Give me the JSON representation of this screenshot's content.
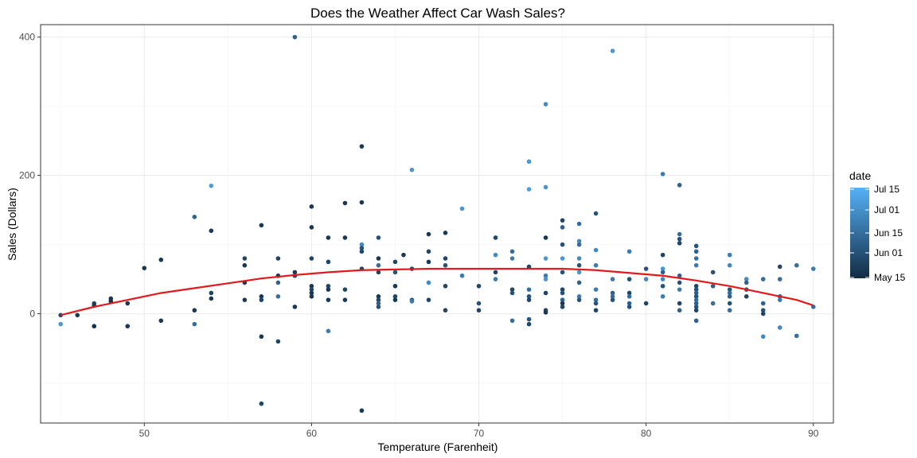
{
  "chart_data": {
    "type": "scatter",
    "title": "Does the Weather Affect Car Wash Sales?",
    "xlabel": "Temperature (Farenheit)",
    "ylabel": "Sales (Dollars)",
    "xlim": [
      43.8,
      91.2
    ],
    "ylim": [
      -158,
      418
    ],
    "xticks": [
      50,
      60,
      70,
      80,
      90
    ],
    "yticks": [
      0,
      200,
      400
    ],
    "grid": true,
    "point_colors": {
      "low": "#132B43",
      "high": "#56B1F7"
    },
    "trend_line": {
      "color": "#e31a1c",
      "x": [
        45,
        47,
        49,
        51,
        53,
        55,
        57,
        59,
        61,
        63,
        65,
        67,
        69,
        71,
        73,
        75,
        77,
        79,
        81,
        83,
        85,
        87,
        89,
        90
      ],
      "y": [
        -2,
        10,
        20,
        30,
        37,
        44,
        51,
        56,
        60,
        63,
        64,
        65,
        65,
        65,
        65,
        65,
        63,
        59,
        55,
        48,
        40,
        30,
        20,
        12
      ]
    },
    "legend": {
      "title": "date",
      "position": "right",
      "labels": [
        "Jul 15",
        "Jul 01",
        "Jun 15",
        "Jun 01",
        "May 15"
      ]
    },
    "points": [
      {
        "x": 45,
        "y": -2,
        "d": 0.2
      },
      {
        "x": 45,
        "y": -15,
        "d": 0.8
      },
      {
        "x": 46,
        "y": -2,
        "d": 0.1
      },
      {
        "x": 47,
        "y": 15,
        "d": 0.2
      },
      {
        "x": 47,
        "y": 12,
        "d": 0.1
      },
      {
        "x": 47,
        "y": -18,
        "d": 0.05
      },
      {
        "x": 48,
        "y": 22,
        "d": 0.1
      },
      {
        "x": 48,
        "y": 18,
        "d": 0.05
      },
      {
        "x": 49,
        "y": 15,
        "d": 0.1
      },
      {
        "x": 49,
        "y": -18,
        "d": 0.1
      },
      {
        "x": 50,
        "y": 66,
        "d": 0.1
      },
      {
        "x": 51,
        "y": 78,
        "d": 0.1
      },
      {
        "x": 51,
        "y": -10,
        "d": 0.1
      },
      {
        "x": 53,
        "y": 140,
        "d": 0.4
      },
      {
        "x": 53,
        "y": 5,
        "d": 0.1
      },
      {
        "x": 53,
        "y": -15,
        "d": 0.5
      },
      {
        "x": 54,
        "y": 185,
        "d": 0.85
      },
      {
        "x": 54,
        "y": 120,
        "d": 0.1
      },
      {
        "x": 54,
        "y": 30,
        "d": 0.2
      },
      {
        "x": 54,
        "y": 22,
        "d": 0.1
      },
      {
        "x": 56,
        "y": 80,
        "d": 0.2
      },
      {
        "x": 56,
        "y": 70,
        "d": 0.1
      },
      {
        "x": 56,
        "y": 45,
        "d": 0.1
      },
      {
        "x": 56,
        "y": 20,
        "d": 0.1
      },
      {
        "x": 57,
        "y": 128,
        "d": 0.1
      },
      {
        "x": 57,
        "y": 25,
        "d": 0.1
      },
      {
        "x": 57,
        "y": 20,
        "d": 0.2
      },
      {
        "x": 57,
        "y": -33,
        "d": 0.1
      },
      {
        "x": 57,
        "y": -130,
        "d": 0.2
      },
      {
        "x": 58,
        "y": 80,
        "d": 0.2
      },
      {
        "x": 58,
        "y": 55,
        "d": 0.1
      },
      {
        "x": 58,
        "y": 45,
        "d": 0.4
      },
      {
        "x": 58,
        "y": 25,
        "d": 0.5
      },
      {
        "x": 58,
        "y": -40,
        "d": 0.2
      },
      {
        "x": 59,
        "y": 400,
        "d": 0.4
      },
      {
        "x": 59,
        "y": 60,
        "d": 0.1
      },
      {
        "x": 59,
        "y": 55,
        "d": 0.2
      },
      {
        "x": 59,
        "y": 10,
        "d": 0.1
      },
      {
        "x": 60,
        "y": 155,
        "d": 0.1
      },
      {
        "x": 60,
        "y": 125,
        "d": 0.1
      },
      {
        "x": 60,
        "y": 80,
        "d": 0.2
      },
      {
        "x": 60,
        "y": 40,
        "d": 0.1
      },
      {
        "x": 60,
        "y": 35,
        "d": 0.2
      },
      {
        "x": 60,
        "y": 30,
        "d": 0.1
      },
      {
        "x": 60,
        "y": 25,
        "d": 0.1
      },
      {
        "x": 61,
        "y": 110,
        "d": 0.1
      },
      {
        "x": 61,
        "y": 75,
        "d": 0.2
      },
      {
        "x": 61,
        "y": 40,
        "d": 0.2
      },
      {
        "x": 61,
        "y": 35,
        "d": 0.1
      },
      {
        "x": 61,
        "y": 20,
        "d": 0.1
      },
      {
        "x": 61,
        "y": -25,
        "d": 0.6
      },
      {
        "x": 62,
        "y": 160,
        "d": 0.1
      },
      {
        "x": 62,
        "y": 110,
        "d": 0.1
      },
      {
        "x": 62,
        "y": 35,
        "d": 0.2
      },
      {
        "x": 62,
        "y": 20,
        "d": 0.1
      },
      {
        "x": 63,
        "y": 242,
        "d": 0.1
      },
      {
        "x": 63,
        "y": 161,
        "d": 0.1
      },
      {
        "x": 63,
        "y": 100,
        "d": 0.7
      },
      {
        "x": 63,
        "y": 95,
        "d": 0.3
      },
      {
        "x": 63,
        "y": 90,
        "d": 0.2
      },
      {
        "x": 63,
        "y": 65,
        "d": 0.2
      },
      {
        "x": 63,
        "y": -140,
        "d": 0.1
      },
      {
        "x": 64,
        "y": 110,
        "d": 0.3
      },
      {
        "x": 64,
        "y": 80,
        "d": 0.1
      },
      {
        "x": 64,
        "y": 70,
        "d": 0.5
      },
      {
        "x": 64,
        "y": 60,
        "d": 0.2
      },
      {
        "x": 64,
        "y": 25,
        "d": 0.1
      },
      {
        "x": 64,
        "y": 20,
        "d": 0.2
      },
      {
        "x": 64,
        "y": 15,
        "d": 0.4
      },
      {
        "x": 64,
        "y": 10,
        "d": 0.3
      },
      {
        "x": 65,
        "y": 75,
        "d": 0.2
      },
      {
        "x": 65,
        "y": 60,
        "d": 0.3
      },
      {
        "x": 65,
        "y": 40,
        "d": 0.1
      },
      {
        "x": 65,
        "y": 25,
        "d": 0.2
      },
      {
        "x": 65,
        "y": 20,
        "d": 0.1
      },
      {
        "x": 65.5,
        "y": 85,
        "d": 0.1
      },
      {
        "x": 66,
        "y": 208,
        "d": 0.8
      },
      {
        "x": 66,
        "y": 65,
        "d": 0.2
      },
      {
        "x": 66,
        "y": 20,
        "d": 0.3
      },
      {
        "x": 66,
        "y": 18,
        "d": 0.6
      },
      {
        "x": 67,
        "y": 115,
        "d": 0.1
      },
      {
        "x": 67,
        "y": 90,
        "d": 0.2
      },
      {
        "x": 67,
        "y": 75,
        "d": 0.1
      },
      {
        "x": 67,
        "y": 45,
        "d": 0.7
      },
      {
        "x": 67,
        "y": 20,
        "d": 0.2
      },
      {
        "x": 68,
        "y": 117,
        "d": 0.1
      },
      {
        "x": 68,
        "y": 80,
        "d": 0.2
      },
      {
        "x": 68,
        "y": 70,
        "d": 0.3
      },
      {
        "x": 68,
        "y": 40,
        "d": 0.2
      },
      {
        "x": 68,
        "y": 5,
        "d": 0.2
      },
      {
        "x": 69,
        "y": 152,
        "d": 0.8
      },
      {
        "x": 69,
        "y": 55,
        "d": 0.6
      },
      {
        "x": 70,
        "y": 40,
        "d": 0.2
      },
      {
        "x": 70,
        "y": 15,
        "d": 0.3
      },
      {
        "x": 70,
        "y": 5,
        "d": 0.2
      },
      {
        "x": 71,
        "y": 110,
        "d": 0.2
      },
      {
        "x": 71,
        "y": 85,
        "d": 0.7
      },
      {
        "x": 71,
        "y": 60,
        "d": 0.2
      },
      {
        "x": 71,
        "y": 50,
        "d": 0.6
      },
      {
        "x": 72,
        "y": 90,
        "d": 0.5
      },
      {
        "x": 72,
        "y": 80,
        "d": 0.6
      },
      {
        "x": 72,
        "y": 30,
        "d": 0.3
      },
      {
        "x": 72,
        "y": 35,
        "d": 0.2
      },
      {
        "x": 72,
        "y": -10,
        "d": 0.5
      },
      {
        "x": 73,
        "y": 220,
        "d": 0.8
      },
      {
        "x": 73,
        "y": 180,
        "d": 0.85
      },
      {
        "x": 73,
        "y": 68,
        "d": 0.2
      },
      {
        "x": 73,
        "y": 35,
        "d": 0.5
      },
      {
        "x": 73,
        "y": 25,
        "d": 0.3
      },
      {
        "x": 73,
        "y": 20,
        "d": 0.2
      },
      {
        "x": 73,
        "y": -8,
        "d": 0.3
      },
      {
        "x": 73,
        "y": -15,
        "d": 0.2
      },
      {
        "x": 74,
        "y": 303,
        "d": 0.7
      },
      {
        "x": 74,
        "y": 183,
        "d": 0.8
      },
      {
        "x": 74,
        "y": 110,
        "d": 0.1
      },
      {
        "x": 74,
        "y": 80,
        "d": 0.8
      },
      {
        "x": 74,
        "y": 55,
        "d": 0.6
      },
      {
        "x": 74,
        "y": 50,
        "d": 0.8
      },
      {
        "x": 74,
        "y": 30,
        "d": 0.2
      },
      {
        "x": 74,
        "y": 5,
        "d": 0.2
      },
      {
        "x": 74,
        "y": 2,
        "d": 0.1
      },
      {
        "x": 75,
        "y": 135,
        "d": 0.2
      },
      {
        "x": 75,
        "y": 125,
        "d": 0.4
      },
      {
        "x": 75,
        "y": 100,
        "d": 0.3
      },
      {
        "x": 75,
        "y": 80,
        "d": 0.8
      },
      {
        "x": 75,
        "y": 60,
        "d": 0.3
      },
      {
        "x": 75,
        "y": 35,
        "d": 0.2
      },
      {
        "x": 75,
        "y": 30,
        "d": 0.3
      },
      {
        "x": 75,
        "y": 20,
        "d": 0.4
      },
      {
        "x": 75,
        "y": 15,
        "d": 0.1
      },
      {
        "x": 75,
        "y": 10,
        "d": 0.2
      },
      {
        "x": 76,
        "y": 130,
        "d": 0.5
      },
      {
        "x": 76,
        "y": 105,
        "d": 0.7
      },
      {
        "x": 76,
        "y": 100,
        "d": 0.5
      },
      {
        "x": 76,
        "y": 80,
        "d": 0.7
      },
      {
        "x": 76,
        "y": 70,
        "d": 0.3
      },
      {
        "x": 76,
        "y": 60,
        "d": 0.8
      },
      {
        "x": 76,
        "y": 45,
        "d": 0.4
      },
      {
        "x": 76,
        "y": 25,
        "d": 0.6
      },
      {
        "x": 76,
        "y": 20,
        "d": 0.3
      },
      {
        "x": 77,
        "y": 145,
        "d": 0.3
      },
      {
        "x": 77,
        "y": 92,
        "d": 0.7
      },
      {
        "x": 77,
        "y": 70,
        "d": 0.6
      },
      {
        "x": 77,
        "y": 35,
        "d": 0.6
      },
      {
        "x": 77,
        "y": 20,
        "d": 0.5
      },
      {
        "x": 77,
        "y": 15,
        "d": 0.3
      },
      {
        "x": 77,
        "y": 5,
        "d": 0.2
      },
      {
        "x": 78,
        "y": 380,
        "d": 0.8
      },
      {
        "x": 78,
        "y": 50,
        "d": 0.6
      },
      {
        "x": 78,
        "y": 30,
        "d": 0.4
      },
      {
        "x": 78,
        "y": 25,
        "d": 0.5
      },
      {
        "x": 78,
        "y": 20,
        "d": 0.3
      },
      {
        "x": 79,
        "y": 90,
        "d": 0.6
      },
      {
        "x": 79,
        "y": 50,
        "d": 0.3
      },
      {
        "x": 79,
        "y": 30,
        "d": 0.2
      },
      {
        "x": 79,
        "y": 25,
        "d": 0.5
      },
      {
        "x": 79,
        "y": 15,
        "d": 0.4
      },
      {
        "x": 79,
        "y": 10,
        "d": 0.3
      },
      {
        "x": 80,
        "y": 65,
        "d": 0.3
      },
      {
        "x": 80,
        "y": 50,
        "d": 0.7
      },
      {
        "x": 80,
        "y": 15,
        "d": 0.2
      },
      {
        "x": 81,
        "y": 202,
        "d": 0.6
      },
      {
        "x": 81,
        "y": 85,
        "d": 0.2
      },
      {
        "x": 81,
        "y": 65,
        "d": 0.8
      },
      {
        "x": 81,
        "y": 60,
        "d": 0.4
      },
      {
        "x": 81,
        "y": 50,
        "d": 0.7
      },
      {
        "x": 81,
        "y": 40,
        "d": 0.3
      },
      {
        "x": 81,
        "y": 25,
        "d": 0.6
      },
      {
        "x": 82,
        "y": 186,
        "d": 0.4
      },
      {
        "x": 82,
        "y": 115,
        "d": 0.5
      },
      {
        "x": 82,
        "y": 108,
        "d": 0.3
      },
      {
        "x": 82,
        "y": 102,
        "d": 0.2
      },
      {
        "x": 82,
        "y": 55,
        "d": 0.4
      },
      {
        "x": 82,
        "y": 45,
        "d": 0.3
      },
      {
        "x": 82,
        "y": 35,
        "d": 0.6
      },
      {
        "x": 82,
        "y": 15,
        "d": 0.2
      },
      {
        "x": 82,
        "y": 5,
        "d": 0.4
      },
      {
        "x": 83,
        "y": 98,
        "d": 0.3
      },
      {
        "x": 83,
        "y": 90,
        "d": 0.4
      },
      {
        "x": 83,
        "y": 80,
        "d": 0.5
      },
      {
        "x": 83,
        "y": 70,
        "d": 0.6
      },
      {
        "x": 83,
        "y": 40,
        "d": 0.2
      },
      {
        "x": 83,
        "y": 35,
        "d": 0.3
      },
      {
        "x": 83,
        "y": 30,
        "d": 0.4
      },
      {
        "x": 83,
        "y": 25,
        "d": 0.3
      },
      {
        "x": 83,
        "y": 20,
        "d": 0.5
      },
      {
        "x": 83,
        "y": 15,
        "d": 0.4
      },
      {
        "x": 83,
        "y": 10,
        "d": 0.3
      },
      {
        "x": 83,
        "y": 5,
        "d": 0.2
      },
      {
        "x": 83,
        "y": -10,
        "d": 0.4
      },
      {
        "x": 84,
        "y": 60,
        "d": 0.3
      },
      {
        "x": 84,
        "y": 40,
        "d": 0.4
      },
      {
        "x": 84,
        "y": 15,
        "d": 0.5
      },
      {
        "x": 85,
        "y": 85,
        "d": 0.6
      },
      {
        "x": 85,
        "y": 70,
        "d": 0.7
      },
      {
        "x": 85,
        "y": 35,
        "d": 0.3
      },
      {
        "x": 85,
        "y": 30,
        "d": 0.5
      },
      {
        "x": 85,
        "y": 25,
        "d": 0.4
      },
      {
        "x": 85,
        "y": 15,
        "d": 0.3
      },
      {
        "x": 85,
        "y": 5,
        "d": 0.5
      },
      {
        "x": 86,
        "y": 50,
        "d": 0.7
      },
      {
        "x": 86,
        "y": 45,
        "d": 0.4
      },
      {
        "x": 86,
        "y": 35,
        "d": 0.3
      },
      {
        "x": 86,
        "y": 25,
        "d": 0.2
      },
      {
        "x": 87,
        "y": 50,
        "d": 0.5
      },
      {
        "x": 87,
        "y": 15,
        "d": 0.4
      },
      {
        "x": 87,
        "y": 5,
        "d": 0.3
      },
      {
        "x": 87,
        "y": 0,
        "d": 0.2
      },
      {
        "x": 87,
        "y": -33,
        "d": 0.7
      },
      {
        "x": 88,
        "y": 68,
        "d": 0.2
      },
      {
        "x": 88,
        "y": 50,
        "d": 0.5
      },
      {
        "x": 88,
        "y": 25,
        "d": 0.4
      },
      {
        "x": 88,
        "y": 20,
        "d": 0.6
      },
      {
        "x": 88,
        "y": -20,
        "d": 0.7
      },
      {
        "x": 89,
        "y": 70,
        "d": 0.5
      },
      {
        "x": 89,
        "y": -32,
        "d": 0.5
      },
      {
        "x": 90,
        "y": 65,
        "d": 0.6
      },
      {
        "x": 90,
        "y": 10,
        "d": 0.5
      }
    ]
  }
}
